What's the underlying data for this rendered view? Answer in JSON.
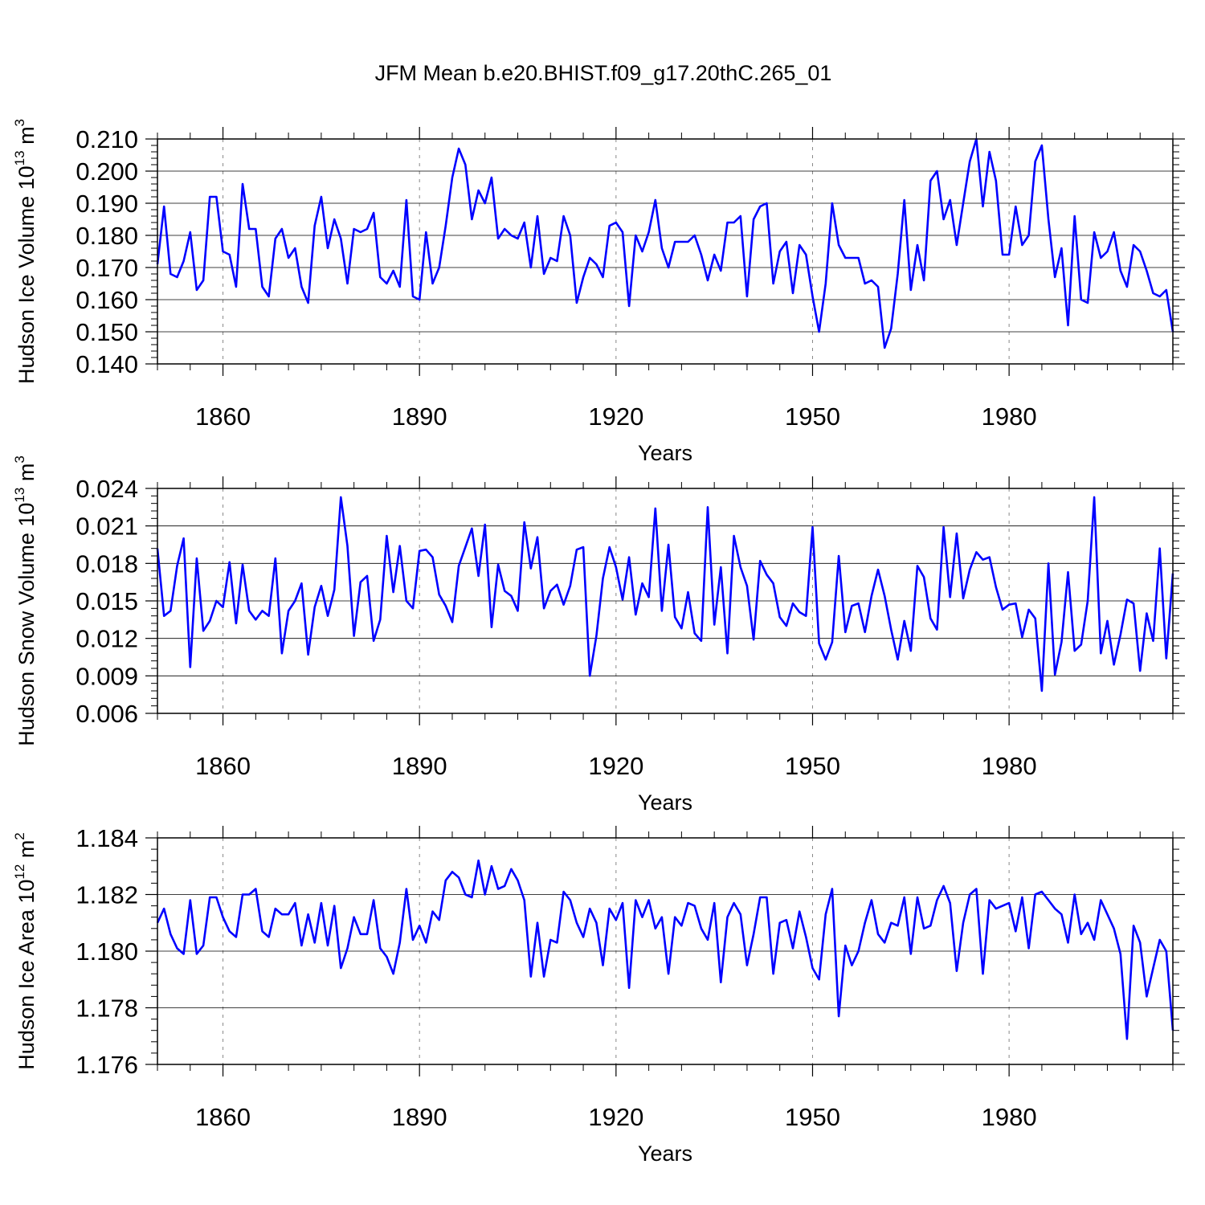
{
  "title": "JFM Mean b.e20.BHIST.f09_g17.20thC.265_01",
  "colors": {
    "line": "#0000ff",
    "axis": "#000000",
    "grid": "#888888"
  },
  "x_ticks": [
    1860,
    1890,
    1920,
    1950,
    1980
  ],
  "chart_data": [
    {
      "type": "line",
      "ylabel": {
        "text": "Hudson Ice Volume 10",
        "exp": "13",
        "unit": " m",
        "unit_exp": "3"
      },
      "xlabel": "Years",
      "x_start": 1850,
      "x_end": 2005,
      "xlim": [
        1850,
        2005
      ],
      "ylim": [
        0.14,
        0.21
      ],
      "y_ticks": [
        0.14,
        0.15,
        0.16,
        0.17,
        0.18,
        0.19,
        0.2,
        0.21
      ],
      "y_tick_labels": [
        "0.140",
        "0.150",
        "0.160",
        "0.170",
        "0.180",
        "0.190",
        "0.200",
        "0.210"
      ],
      "values": [
        0.171,
        0.189,
        0.168,
        0.167,
        0.172,
        0.181,
        0.163,
        0.166,
        0.192,
        0.192,
        0.175,
        0.174,
        0.164,
        0.196,
        0.182,
        0.182,
        0.164,
        0.161,
        0.179,
        0.182,
        0.173,
        0.176,
        0.164,
        0.159,
        0.183,
        0.192,
        0.176,
        0.185,
        0.179,
        0.165,
        0.182,
        0.181,
        0.182,
        0.187,
        0.167,
        0.165,
        0.169,
        0.164,
        0.191,
        0.161,
        0.16,
        0.181,
        0.165,
        0.17,
        0.183,
        0.198,
        0.207,
        0.202,
        0.185,
        0.194,
        0.19,
        0.198,
        0.179,
        0.182,
        0.18,
        0.179,
        0.184,
        0.17,
        0.186,
        0.168,
        0.173,
        0.172,
        0.186,
        0.18,
        0.159,
        0.167,
        0.173,
        0.171,
        0.167,
        0.183,
        0.184,
        0.181,
        0.158,
        0.18,
        0.175,
        0.181,
        0.191,
        0.176,
        0.17,
        0.178,
        0.178,
        0.178,
        0.18,
        0.174,
        0.166,
        0.174,
        0.169,
        0.184,
        0.184,
        0.186,
        0.161,
        0.185,
        0.189,
        0.19,
        0.165,
        0.175,
        0.178,
        0.162,
        0.177,
        0.174,
        0.161,
        0.15,
        0.165,
        0.19,
        0.177,
        0.173,
        0.173,
        0.173,
        0.165,
        0.166,
        0.164,
        0.145,
        0.151,
        0.168,
        0.191,
        0.163,
        0.177,
        0.166,
        0.197,
        0.2,
        0.185,
        0.191,
        0.177,
        0.19,
        0.203,
        0.21,
        0.189,
        0.206,
        0.197,
        0.174,
        0.174,
        0.189,
        0.177,
        0.18,
        0.203,
        0.208,
        0.185,
        0.167,
        0.176,
        0.152,
        0.186,
        0.16,
        0.159,
        0.181,
        0.173,
        0.175,
        0.181,
        0.169,
        0.164,
        0.177,
        0.175,
        0.169,
        0.162,
        0.161,
        0.163,
        0.15
      ]
    },
    {
      "type": "line",
      "ylabel": {
        "text": "Hudson Snow Volume 10",
        "exp": "13",
        "unit": " m",
        "unit_exp": "3"
      },
      "xlabel": "Years",
      "x_start": 1850,
      "x_end": 2005,
      "xlim": [
        1850,
        2005
      ],
      "ylim": [
        0.006,
        0.024
      ],
      "y_ticks": [
        0.006,
        0.009,
        0.012,
        0.015,
        0.018,
        0.021,
        0.024
      ],
      "y_tick_labels": [
        "0.006",
        "0.009",
        "0.012",
        "0.015",
        "0.018",
        "0.021",
        "0.024"
      ],
      "values": [
        0.0192,
        0.0138,
        0.0142,
        0.0178,
        0.02,
        0.0097,
        0.0184,
        0.0126,
        0.0134,
        0.015,
        0.0145,
        0.0181,
        0.0132,
        0.0179,
        0.0142,
        0.0135,
        0.0142,
        0.0138,
        0.0184,
        0.0108,
        0.0142,
        0.015,
        0.0164,
        0.0107,
        0.0145,
        0.0162,
        0.0138,
        0.0159,
        0.0233,
        0.0194,
        0.0122,
        0.0165,
        0.017,
        0.0118,
        0.0135,
        0.0202,
        0.0157,
        0.0194,
        0.015,
        0.0144,
        0.019,
        0.0191,
        0.0185,
        0.0155,
        0.0146,
        0.0133,
        0.0178,
        0.0193,
        0.0208,
        0.017,
        0.0211,
        0.0129,
        0.0179,
        0.0158,
        0.0154,
        0.0142,
        0.0213,
        0.0176,
        0.0201,
        0.0144,
        0.0158,
        0.0163,
        0.0147,
        0.0162,
        0.0191,
        0.0193,
        0.009,
        0.0122,
        0.0168,
        0.0193,
        0.0177,
        0.0151,
        0.0185,
        0.0139,
        0.0164,
        0.0153,
        0.0224,
        0.0142,
        0.0195,
        0.0137,
        0.0128,
        0.0157,
        0.0124,
        0.0118,
        0.0225,
        0.0131,
        0.0177,
        0.0108,
        0.0202,
        0.0177,
        0.0162,
        0.0119,
        0.0182,
        0.0171,
        0.0164,
        0.0137,
        0.013,
        0.0148,
        0.0141,
        0.0138,
        0.0209,
        0.0116,
        0.0103,
        0.0117,
        0.0186,
        0.0125,
        0.0146,
        0.0148,
        0.0125,
        0.0154,
        0.0175,
        0.0154,
        0.0127,
        0.0103,
        0.0134,
        0.011,
        0.0178,
        0.0169,
        0.0136,
        0.0127,
        0.0209,
        0.0153,
        0.0204,
        0.0152,
        0.0175,
        0.0189,
        0.0183,
        0.0185,
        0.0161,
        0.0143,
        0.0147,
        0.0148,
        0.0121,
        0.0143,
        0.0136,
        0.0078,
        0.018,
        0.0091,
        0.0117,
        0.0173,
        0.011,
        0.0115,
        0.015,
        0.0233,
        0.0108,
        0.0134,
        0.0099,
        0.0123,
        0.0151,
        0.0148,
        0.0094,
        0.014,
        0.0118,
        0.0192,
        0.0104,
        0.0172
      ]
    },
    {
      "type": "line",
      "ylabel": {
        "text": "Hudson Ice Area 10",
        "exp": "12",
        "unit": " m",
        "unit_exp": "2"
      },
      "xlabel": "Years",
      "x_start": 1850,
      "x_end": 2005,
      "xlim": [
        1850,
        2005
      ],
      "ylim": [
        1.176,
        1.184
      ],
      "y_ticks": [
        1.176,
        1.178,
        1.18,
        1.182,
        1.184
      ],
      "y_tick_labels": [
        "1.176",
        "1.178",
        "1.180",
        "1.182",
        "1.184"
      ],
      "values": [
        1.181,
        1.1815,
        1.1806,
        1.1801,
        1.1799,
        1.1818,
        1.1799,
        1.1802,
        1.1819,
        1.1819,
        1.1812,
        1.1807,
        1.1805,
        1.182,
        1.182,
        1.1822,
        1.1807,
        1.1805,
        1.1815,
        1.1813,
        1.1813,
        1.1817,
        1.1802,
        1.1813,
        1.1803,
        1.1817,
        1.1802,
        1.1816,
        1.1794,
        1.1801,
        1.1812,
        1.1806,
        1.1806,
        1.1818,
        1.1801,
        1.1798,
        1.1792,
        1.1803,
        1.1822,
        1.1804,
        1.1809,
        1.1803,
        1.1814,
        1.1811,
        1.1825,
        1.1828,
        1.1826,
        1.182,
        1.1819,
        1.1832,
        1.182,
        1.183,
        1.1822,
        1.1823,
        1.1829,
        1.1825,
        1.1818,
        1.1791,
        1.181,
        1.1791,
        1.1804,
        1.1803,
        1.1821,
        1.1818,
        1.181,
        1.1805,
        1.1815,
        1.181,
        1.1795,
        1.1815,
        1.1811,
        1.1817,
        1.1787,
        1.1818,
        1.1812,
        1.1818,
        1.1808,
        1.1812,
        1.1792,
        1.1812,
        1.1809,
        1.1817,
        1.1816,
        1.1808,
        1.1804,
        1.1817,
        1.1789,
        1.1812,
        1.1817,
        1.1813,
        1.1795,
        1.1806,
        1.1819,
        1.1819,
        1.1792,
        1.181,
        1.1811,
        1.1801,
        1.1814,
        1.1805,
        1.1794,
        1.179,
        1.1813,
        1.1822,
        1.1777,
        1.1802,
        1.1795,
        1.18,
        1.181,
        1.1818,
        1.1806,
        1.1803,
        1.181,
        1.1809,
        1.1819,
        1.1799,
        1.1819,
        1.1808,
        1.1809,
        1.1818,
        1.1823,
        1.1817,
        1.1793,
        1.181,
        1.182,
        1.1822,
        1.1792,
        1.1818,
        1.1815,
        1.1816,
        1.1817,
        1.1807,
        1.1819,
        1.1801,
        1.182,
        1.1821,
        1.1818,
        1.1815,
        1.1813,
        1.1803,
        1.182,
        1.1806,
        1.181,
        1.1804,
        1.1818,
        1.1813,
        1.1808,
        1.1799,
        1.1769,
        1.1809,
        1.1803,
        1.1784,
        1.1794,
        1.1804,
        1.18,
        1.1772
      ]
    }
  ]
}
